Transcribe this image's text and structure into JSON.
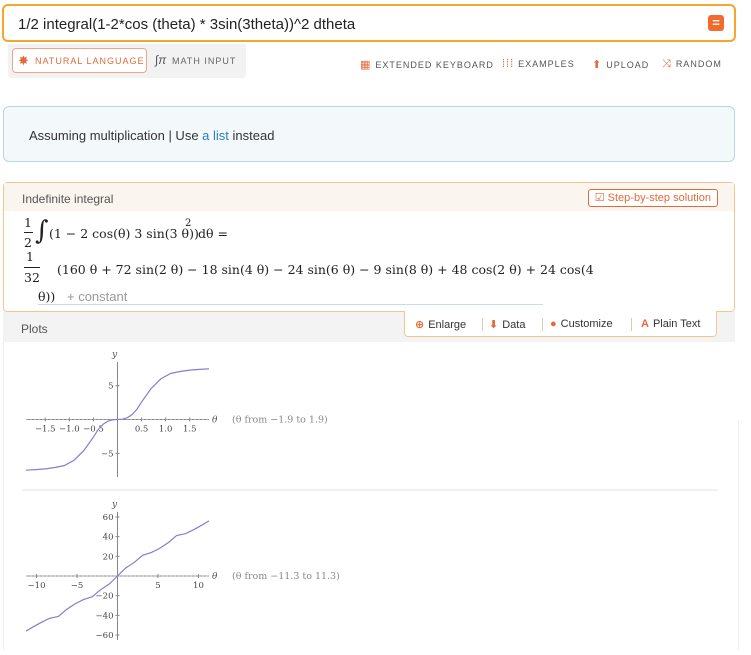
{
  "query": {
    "text": "1/2 integral(1-2*cos (theta) * 3sin(3theta))^2 dtheta",
    "equals_label": "="
  },
  "mode_tabs": {
    "natural_language": "NATURAL LANGUAGE",
    "math_input": "MATH INPUT"
  },
  "toolbar": {
    "extended_keyboard": "EXTENDED KEYBOARD",
    "examples": "EXAMPLES",
    "upload": "UPLOAD",
    "random": "RANDOM"
  },
  "assumption": {
    "prefix": "Assuming multiplication | Use ",
    "link": "a list",
    "suffix": " instead"
  },
  "integral_pod": {
    "title": "Indefinite integral",
    "step_button": "Step-by-step solution",
    "lhs_num": "1",
    "lhs_den": "2",
    "lhs_integrand": "(1 − 2 cos(θ) 3 sin(3 θ))",
    "lhs_power": "2",
    "lhs_tail": "dθ =",
    "rhs_num": "1",
    "rhs_den": "32",
    "rhs_line1": "(160 θ + 72 sin(2 θ) − 18 sin(4 θ) − 24 sin(6 θ) − 9 sin(8 θ) + 48 cos(2 θ) + 24 cos(4",
    "rhs_line2": "θ))",
    "constant": "+ constant"
  },
  "plots_pod": {
    "title": "Plots",
    "enlarge": "Enlarge",
    "data": "Data",
    "customize": "Customize",
    "plain_text": "Plain Text"
  },
  "chart_data": [
    {
      "type": "line",
      "title": "",
      "xlabel": "θ",
      "ylabel": "y",
      "range_note": "(θ from −1.9 to 1.9)",
      "xlim": [
        -1.9,
        1.9
      ],
      "ylim": [
        -8.5,
        8.5
      ],
      "x_ticks": [
        -1.5,
        -1.0,
        -0.5,
        0.5,
        1.0,
        1.5
      ],
      "x_tick_labels": [
        "−1.5",
        "−1.0",
        "−0.5",
        "0.5",
        "1.0",
        "1.5"
      ],
      "y_ticks": [
        5,
        -5
      ],
      "y_tick_labels": [
        "5",
        "−5"
      ],
      "x": [
        -1.9,
        -1.7,
        -1.5,
        -1.3,
        -1.1,
        -0.9,
        -0.7,
        -0.5,
        -0.4,
        -0.3,
        -0.2,
        -0.1,
        0.0,
        0.1,
        0.2,
        0.3,
        0.4,
        0.5,
        0.7,
        0.9,
        1.1,
        1.3,
        1.5,
        1.7,
        1.9
      ],
      "y": [
        -7.5,
        -7.4,
        -7.3,
        -7.1,
        -6.8,
        -6.0,
        -4.6,
        -2.6,
        -1.5,
        -0.7,
        -0.25,
        -0.05,
        0.0,
        0.05,
        0.25,
        0.7,
        1.5,
        2.6,
        4.6,
        6.0,
        6.8,
        7.1,
        7.3,
        7.4,
        7.5
      ]
    },
    {
      "type": "line",
      "title": "",
      "xlabel": "θ",
      "ylabel": "y",
      "range_note": "(θ from −11.3 to 11.3)",
      "xlim": [
        -11.3,
        11.3
      ],
      "ylim": [
        -65,
        65
      ],
      "x_ticks": [
        -10,
        -5,
        5,
        10
      ],
      "x_tick_labels": [
        "−10",
        "−5",
        "5",
        "10"
      ],
      "y_ticks": [
        60,
        40,
        20,
        -20,
        -40,
        -60
      ],
      "y_tick_labels": [
        "60",
        "40",
        "20",
        "−20",
        "−40",
        "−60"
      ],
      "x": [
        -11.3,
        -10.5,
        -9.4,
        -8.4,
        -7.3,
        -6.3,
        -5.2,
        -4.2,
        -3.1,
        -2.1,
        -1.0,
        0.0,
        1.0,
        2.1,
        3.1,
        4.2,
        5.2,
        6.3,
        7.3,
        8.4,
        9.4,
        10.5,
        11.3
      ],
      "y": [
        -56,
        -52,
        -47,
        -43,
        -41,
        -34,
        -28,
        -24,
        -21,
        -14,
        -8,
        0,
        8,
        14,
        21,
        24,
        28,
        34,
        41,
        43,
        47,
        52,
        56
      ]
    }
  ]
}
